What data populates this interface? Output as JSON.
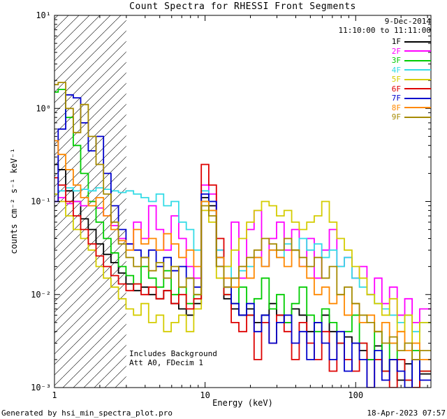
{
  "header": {
    "date": "9-Dec-2014",
    "time_range": "11:10:00 to 11:11:00"
  },
  "annotations": [
    "Includes Background",
    "Att A0, FDecim 1"
  ],
  "footer": {
    "left": "Generated by hsi_min_spectra_plot.pro",
    "right": "18-Apr-2023 07:57"
  },
  "chart_data": {
    "type": "line",
    "title": "Count Spectra for RHESSI Front Segments",
    "xlabel": "Energy (keV)",
    "ylabel": "counts cm⁻² s⁻¹ keV⁻¹",
    "xscale": "log",
    "yscale": "log",
    "xlim": [
      1,
      316
    ],
    "ylim": [
      0.001,
      10
    ],
    "hatch_region": [
      1,
      3
    ],
    "grid": false,
    "legend_position": "top-right",
    "x_ticks": [
      {
        "v": 1,
        "label": "1"
      },
      {
        "v": 10,
        "label": "10"
      },
      {
        "v": 100,
        "label": "100"
      }
    ],
    "x_minor": [
      2,
      3,
      4,
      5,
      6,
      7,
      8,
      9,
      20,
      30,
      40,
      50,
      60,
      70,
      80,
      90,
      200,
      300
    ],
    "y_ticks": [
      {
        "v": 10,
        "label": "10¹"
      },
      {
        "v": 1,
        "label": "10⁰"
      },
      {
        "v": 0.1,
        "label": "10⁻¹"
      },
      {
        "v": 0.01,
        "label": "10⁻²"
      },
      {
        "v": 0.001,
        "label": "10⁻³"
      }
    ],
    "y_minor": [
      0.002,
      0.003,
      0.004,
      0.005,
      0.006,
      0.007,
      0.008,
      0.009,
      0.02,
      0.03,
      0.04,
      0.05,
      0.06,
      0.07,
      0.08,
      0.09,
      0.2,
      0.3,
      0.4,
      0.5,
      0.6,
      0.7,
      0.8,
      0.9,
      2,
      3,
      4,
      5,
      6,
      7,
      8,
      9
    ],
    "x": [
      1.0,
      1.12,
      1.26,
      1.41,
      1.58,
      1.78,
      2.0,
      2.24,
      2.51,
      2.82,
      3.16,
      3.55,
      3.98,
      4.47,
      5.01,
      5.62,
      6.31,
      7.08,
      7.94,
      8.91,
      10.0,
      11.2,
      12.6,
      14.1,
      15.8,
      17.8,
      20.0,
      22.4,
      25.1,
      28.2,
      31.6,
      35.5,
      39.8,
      44.7,
      50.1,
      56.2,
      63.1,
      70.8,
      79.4,
      89.1,
      100,
      112,
      126,
      141,
      158,
      178,
      200,
      224,
      251,
      282
    ],
    "series": [
      {
        "name": "1F",
        "color": "#000000",
        "values": [
          0.25,
          0.22,
          0.13,
          0.1,
          0.065,
          0.05,
          0.035,
          0.027,
          0.022,
          0.017,
          0.013,
          0.011,
          0.012,
          0.01,
          0.009,
          0.011,
          0.008,
          0.007,
          0.006,
          0.008,
          0.11,
          0.09,
          0.02,
          0.009,
          0.007,
          0.006,
          0.007,
          0.005,
          0.006,
          0.008,
          0.006,
          0.005,
          0.007,
          0.006,
          0.004,
          0.005,
          0.006,
          0.004,
          0.003,
          0.0035,
          0.003,
          0.0025,
          0.002,
          0.0028,
          0.0015,
          0.002,
          0.0012,
          0.0018,
          0.001,
          0.0014
        ]
      },
      {
        "name": "2F",
        "color": "#ff00ff",
        "values": [
          0.1,
          0.11,
          0.095,
          0.1,
          0.09,
          0.1,
          0.085,
          0.07,
          0.055,
          0.04,
          0.035,
          0.06,
          0.04,
          0.09,
          0.05,
          0.03,
          0.07,
          0.04,
          0.02,
          0.015,
          0.15,
          0.12,
          0.03,
          0.02,
          0.06,
          0.015,
          0.05,
          0.08,
          0.02,
          0.04,
          0.06,
          0.03,
          0.05,
          0.02,
          0.04,
          0.015,
          0.03,
          0.05,
          0.02,
          0.025,
          0.015,
          0.02,
          0.01,
          0.015,
          0.008,
          0.012,
          0.006,
          0.009,
          0.005,
          0.007
        ]
      },
      {
        "name": "3F",
        "color": "#00cc00",
        "values": [
          1.5,
          1.6,
          0.8,
          0.4,
          0.2,
          0.1,
          0.06,
          0.04,
          0.028,
          0.02,
          0.016,
          0.013,
          0.02,
          0.015,
          0.012,
          0.018,
          0.01,
          0.012,
          0.008,
          0.01,
          0.1,
          0.08,
          0.025,
          0.01,
          0.008,
          0.012,
          0.006,
          0.009,
          0.015,
          0.007,
          0.01,
          0.005,
          0.008,
          0.012,
          0.006,
          0.004,
          0.007,
          0.005,
          0.003,
          0.004,
          0.006,
          0.003,
          0.002,
          0.004,
          0.0015,
          0.003,
          0.002,
          0.0012,
          0.0025,
          0.0015
        ]
      },
      {
        "name": "4F",
        "color": "#33dbe6",
        "values": [
          0.12,
          0.13,
          0.14,
          0.13,
          0.135,
          0.13,
          0.14,
          0.135,
          0.13,
          0.125,
          0.13,
          0.12,
          0.11,
          0.1,
          0.12,
          0.09,
          0.1,
          0.06,
          0.05,
          0.03,
          0.13,
          0.1,
          0.03,
          0.02,
          0.015,
          0.018,
          0.02,
          0.025,
          0.02,
          0.03,
          0.025,
          0.035,
          0.03,
          0.04,
          0.03,
          0.035,
          0.025,
          0.03,
          0.02,
          0.025,
          0.015,
          0.012,
          0.01,
          0.008,
          0.007,
          0.006,
          0.005,
          0.006,
          0.004,
          0.005
        ]
      },
      {
        "name": "5F",
        "color": "#d4cc00",
        "values": [
          0.12,
          0.1,
          0.07,
          0.05,
          0.04,
          0.03,
          0.02,
          0.015,
          0.012,
          0.009,
          0.007,
          0.006,
          0.008,
          0.005,
          0.006,
          0.004,
          0.005,
          0.006,
          0.004,
          0.007,
          0.08,
          0.06,
          0.015,
          0.02,
          0.03,
          0.04,
          0.06,
          0.08,
          0.1,
          0.09,
          0.07,
          0.08,
          0.06,
          0.05,
          0.06,
          0.07,
          0.1,
          0.06,
          0.04,
          0.03,
          0.02,
          0.015,
          0.01,
          0.008,
          0.006,
          0.009,
          0.004,
          0.006,
          0.003,
          0.005
        ]
      },
      {
        "name": "6F",
        "color": "#dd0000",
        "values": [
          0.18,
          0.15,
          0.1,
          0.07,
          0.05,
          0.035,
          0.026,
          0.02,
          0.016,
          0.013,
          0.011,
          0.013,
          0.01,
          0.012,
          0.009,
          0.011,
          0.008,
          0.01,
          0.007,
          0.009,
          0.25,
          0.15,
          0.04,
          0.01,
          0.005,
          0.004,
          0.006,
          0.002,
          0.005,
          0.003,
          0.006,
          0.004,
          0.002,
          0.005,
          0.003,
          0.002,
          0.004,
          0.0015,
          0.003,
          0.002,
          0.0015,
          0.003,
          0.001,
          0.002,
          0.0015,
          0.001,
          0.002,
          0.0012,
          0.001,
          0.0015
        ]
      },
      {
        "name": "7F",
        "color": "#0000cc",
        "values": [
          0.1,
          0.6,
          1.4,
          1.3,
          0.7,
          0.35,
          0.5,
          0.2,
          0.09,
          0.05,
          0.035,
          0.03,
          0.025,
          0.03,
          0.02,
          0.025,
          0.018,
          0.02,
          0.015,
          0.012,
          0.12,
          0.1,
          0.025,
          0.012,
          0.008,
          0.006,
          0.008,
          0.004,
          0.006,
          0.003,
          0.005,
          0.006,
          0.003,
          0.004,
          0.002,
          0.005,
          0.003,
          0.002,
          0.004,
          0.0015,
          0.003,
          0.002,
          0.001,
          0.0025,
          0.0012,
          0.002,
          0.0015,
          0.001,
          0.002,
          0.0012
        ]
      },
      {
        "name": "8F",
        "color": "#ff8800",
        "values": [
          0.45,
          0.32,
          0.22,
          0.15,
          0.11,
          0.09,
          0.11,
          0.07,
          0.05,
          0.038,
          0.03,
          0.05,
          0.035,
          0.04,
          0.03,
          0.045,
          0.035,
          0.025,
          0.03,
          0.02,
          0.1,
          0.08,
          0.025,
          0.015,
          0.012,
          0.02,
          0.015,
          0.025,
          0.02,
          0.03,
          0.025,
          0.02,
          0.03,
          0.02,
          0.015,
          0.01,
          0.012,
          0.008,
          0.01,
          0.006,
          0.008,
          0.005,
          0.006,
          0.004,
          0.005,
          0.003,
          0.004,
          0.0025,
          0.003,
          0.002
        ]
      },
      {
        "name": "9F",
        "color": "#a68a00",
        "values": [
          1.8,
          1.9,
          1.0,
          0.55,
          1.1,
          0.5,
          0.25,
          0.12,
          0.06,
          0.035,
          0.025,
          0.02,
          0.025,
          0.018,
          0.022,
          0.015,
          0.02,
          0.012,
          0.015,
          0.01,
          0.09,
          0.07,
          0.02,
          0.012,
          0.015,
          0.02,
          0.025,
          0.03,
          0.04,
          0.035,
          0.03,
          0.04,
          0.03,
          0.025,
          0.02,
          0.025,
          0.015,
          0.02,
          0.01,
          0.012,
          0.008,
          0.006,
          0.005,
          0.004,
          0.003,
          0.0035,
          0.0025,
          0.003,
          0.002,
          0.0025
        ]
      }
    ]
  }
}
